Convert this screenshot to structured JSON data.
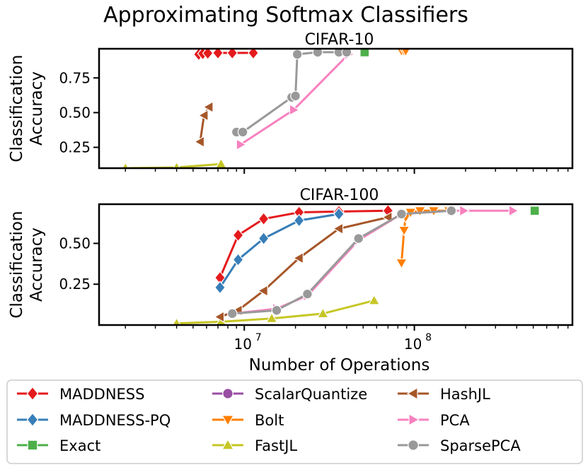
{
  "colors": {
    "MADDNESS": "#e41a1c",
    "MADDNESS-PQ": "#377eb8",
    "Exact": "#4daf4a",
    "ScalarQuantize": "#984ea3",
    "Bolt": "#ff7f00",
    "FastJL": "#c6c625",
    "HashJL": "#a65628",
    "PCA": "#f781bf",
    "SparsePCA": "#999999"
  },
  "chart_data": [
    {
      "type": "line",
      "title": "CIFAR-10",
      "suptitle": "Approximating Softmax Classifiers",
      "xlabel": "",
      "ylabel": "Classification\nAccuracy",
      "xscale": "log",
      "xlim": [
        1400000.0,
        850000000.0
      ],
      "ylim": [
        0.1,
        0.96
      ],
      "yticks": [
        {
          "v": 0.25,
          "label": "0.25"
        },
        {
          "v": 0.5,
          "label": "0.50"
        },
        {
          "v": 0.75,
          "label": "0.75"
        }
      ],
      "xticks": [],
      "series": [
        {
          "name": "MADDNESS",
          "marker": "diamond",
          "x": [
            5400000.0,
            5700000.0,
            6100000.0,
            7000000.0,
            8500000.0,
            11300000.0
          ],
          "y": [
            0.92,
            0.925,
            0.928,
            0.93,
            0.93,
            0.93
          ]
        },
        {
          "name": "Exact",
          "marker": "square",
          "x": [
            51000000.0
          ],
          "y": [
            0.935
          ]
        },
        {
          "name": "Bolt",
          "marker": "triangle-down",
          "x": [
            84000000.0,
            87000000.0,
            89000000.0
          ],
          "y": [
            0.945,
            0.945,
            0.945
          ]
        },
        {
          "name": "FastJL",
          "marker": "triangle-up",
          "x": [
            2000000.0,
            4000000.0,
            7300000.0
          ],
          "y": [
            0.1,
            0.105,
            0.13
          ]
        },
        {
          "name": "HashJL",
          "marker": "triangle-left",
          "x": [
            5500000.0,
            5800000.0,
            6200000.0
          ],
          "y": [
            0.29,
            0.48,
            0.54
          ]
        },
        {
          "name": "PCA",
          "marker": "triangle-right",
          "x": [
            9500000.0,
            19500000.0,
            41000000.0
          ],
          "y": [
            0.27,
            0.52,
            0.92
          ]
        },
        {
          "name": "SparsePCA",
          "marker": "circle",
          "x": [
            9000000.0,
            9800000.0,
            19000000.0,
            20000000.0,
            20500000.0,
            27000000.0,
            36000000.0,
            40000000.0
          ],
          "y": [
            0.36,
            0.36,
            0.61,
            0.62,
            0.92,
            0.935,
            0.935,
            0.935
          ]
        }
      ]
    },
    {
      "type": "line",
      "title": "CIFAR-100",
      "xlabel": "Number of Operations",
      "ylabel": "Classification\nAccuracy",
      "xscale": "log",
      "xlim": [
        1400000.0,
        850000000.0
      ],
      "ylim": [
        0.0,
        0.74
      ],
      "yticks": [
        {
          "v": 0.25,
          "label": "0.25"
        },
        {
          "v": 0.5,
          "label": "0.50"
        }
      ],
      "xticks": [
        {
          "v": 10000000.0,
          "label": "10",
          "exp": "7"
        },
        {
          "v": 100000000.0,
          "label": "10",
          "exp": "8"
        }
      ],
      "series": [
        {
          "name": "MADDNESS",
          "marker": "diamond",
          "x": [
            7200000.0,
            9200000.0,
            13000000.0,
            21000000.0,
            36000000.0,
            70000000.0
          ],
          "y": [
            0.29,
            0.55,
            0.65,
            0.69,
            0.695,
            0.7
          ]
        },
        {
          "name": "MADDNESS-PQ",
          "marker": "diamond",
          "x": [
            7200000.0,
            9200000.0,
            13000000.0,
            21000000.0,
            36000000.0
          ],
          "y": [
            0.23,
            0.4,
            0.53,
            0.64,
            0.68
          ]
        },
        {
          "name": "Exact",
          "marker": "square",
          "x": [
            510000000.0
          ],
          "y": [
            0.7
          ]
        },
        {
          "name": "Bolt",
          "marker": "triangle-down",
          "x": [
            84000000.0,
            87000000.0,
            89000000.0,
            95000000.0,
            108000000.0,
            130000000.0,
            160000000.0
          ],
          "y": [
            0.38,
            0.58,
            0.66,
            0.69,
            0.7,
            0.7,
            0.7
          ]
        },
        {
          "name": "FastJL",
          "marker": "triangle-up",
          "x": [
            4000000.0,
            7300000.0,
            14500000.0,
            29000000.0,
            58000000.0
          ],
          "y": [
            0.01,
            0.02,
            0.04,
            0.07,
            0.15
          ]
        },
        {
          "name": "HashJL",
          "marker": "triangle-left",
          "x": [
            7200000.0,
            9200000.0,
            13000000.0,
            21000000.0,
            36000000.0,
            70000000.0
          ],
          "y": [
            0.05,
            0.09,
            0.21,
            0.41,
            0.59,
            0.66
          ]
        },
        {
          "name": "PCA",
          "marker": "triangle-right",
          "x": [
            8500000.0,
            15500000.0,
            23500000.0,
            47000000.0,
            84000000.0,
            165000000.0,
            195000000.0,
            380000000.0
          ],
          "y": [
            0.07,
            0.1,
            0.18,
            0.52,
            0.68,
            0.7,
            0.7,
            0.7
          ]
        },
        {
          "name": "SparsePCA",
          "marker": "circle",
          "x": [
            8500000.0,
            15500000.0,
            23500000.0,
            47000000.0,
            84000000.0,
            165000000.0
          ],
          "y": [
            0.07,
            0.09,
            0.19,
            0.53,
            0.68,
            0.7
          ]
        }
      ]
    }
  ],
  "legend": {
    "position": "bottom",
    "columns": [
      [
        {
          "label": "MADDNESS",
          "marker": "diamond"
        },
        {
          "label": "MADDNESS-PQ",
          "marker": "diamond"
        },
        {
          "label": "Exact",
          "marker": "square"
        }
      ],
      [
        {
          "label": "ScalarQuantize",
          "marker": "circle"
        },
        {
          "label": "Bolt",
          "marker": "triangle-down"
        },
        {
          "label": "FastJL",
          "marker": "triangle-up"
        }
      ],
      [
        {
          "label": "HashJL",
          "marker": "triangle-left"
        },
        {
          "label": "PCA",
          "marker": "triangle-right"
        },
        {
          "label": "SparsePCA",
          "marker": "circle"
        }
      ]
    ]
  }
}
